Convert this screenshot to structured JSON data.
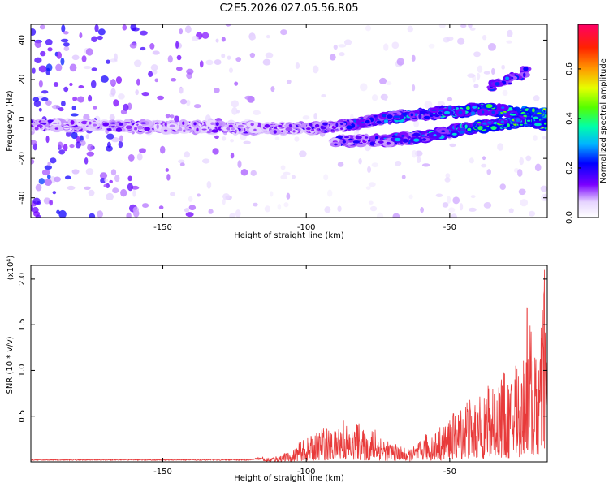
{
  "chart_data": [
    {
      "type": "heatmap",
      "title": "C2E5.2026.027.05.56.R05",
      "xlabel": "Height of straight line (km)",
      "ylabel": "Frequency (Hz)",
      "xlim": [
        -196,
        -16
      ],
      "ylim": [
        -50,
        48
      ],
      "xticks": [
        -150,
        -100,
        -50
      ],
      "yticks": [
        -40,
        -20,
        0,
        20,
        40
      ],
      "colorbar": {
        "label": "Normalized spectral amplitude",
        "range": [
          0,
          0.78
        ],
        "ticks": [
          0.0,
          0.2,
          0.4,
          0.6
        ]
      },
      "features": [
        {
          "name": "primary branch",
          "x": [
            -196,
            -150,
            -120,
            -100,
            -85,
            -70,
            -55,
            -40,
            -30,
            -20,
            -16
          ],
          "frequency": [
            -3,
            -4,
            -4.5,
            -5,
            -3,
            1,
            3,
            5,
            4,
            3,
            3
          ]
        },
        {
          "name": "secondary branch",
          "x": [
            -90,
            -75,
            -65,
            -55,
            -45,
            -35,
            -28,
            -22,
            -16
          ],
          "frequency": [
            -11,
            -11,
            -10,
            -8,
            -5,
            -3,
            -2,
            -1,
            -3
          ]
        },
        {
          "name": "upper echoes",
          "x": [
            -36,
            -30,
            -23
          ],
          "frequency": [
            16,
            19,
            24
          ]
        }
      ]
    },
    {
      "type": "line",
      "title": "C2E5.2026.027.05.56.R05",
      "xlabel": "Height of straight line (km)",
      "ylabel": "SNR (10 * v/v)",
      "scale_label": "(x10⁴)",
      "xlim": [
        -196,
        -16
      ],
      "ylim": [
        0,
        2.15
      ],
      "xticks": [
        -150,
        -100,
        -50
      ],
      "yticks": [
        0.5,
        1.0,
        1.5,
        2.0
      ],
      "series": [
        {
          "name": "SNR",
          "color": "#e83a3a",
          "x": [
            -196,
            -180,
            -160,
            -140,
            -120,
            -112,
            -105,
            -102,
            -98,
            -94,
            -90,
            -87,
            -85,
            -82,
            -79,
            -76,
            -73,
            -70,
            -67,
            -64,
            -61,
            -58,
            -55,
            -52,
            -50,
            -47,
            -44,
            -41,
            -38,
            -35,
            -32,
            -29,
            -27,
            -25,
            -23,
            -21,
            -19,
            -18,
            -17,
            -16
          ],
          "y": [
            0.02,
            0.02,
            0.02,
            0.02,
            0.02,
            0.05,
            0.1,
            0.2,
            0.25,
            0.35,
            0.3,
            0.45,
            0.3,
            0.4,
            0.25,
            0.35,
            0.22,
            0.18,
            0.15,
            0.12,
            0.18,
            0.28,
            0.3,
            0.38,
            0.45,
            0.5,
            0.65,
            0.55,
            0.7,
            0.8,
            0.9,
            0.75,
            1.05,
            0.85,
            1.68,
            1.1,
            1.0,
            1.35,
            2.1,
            0.9
          ]
        }
      ]
    }
  ]
}
